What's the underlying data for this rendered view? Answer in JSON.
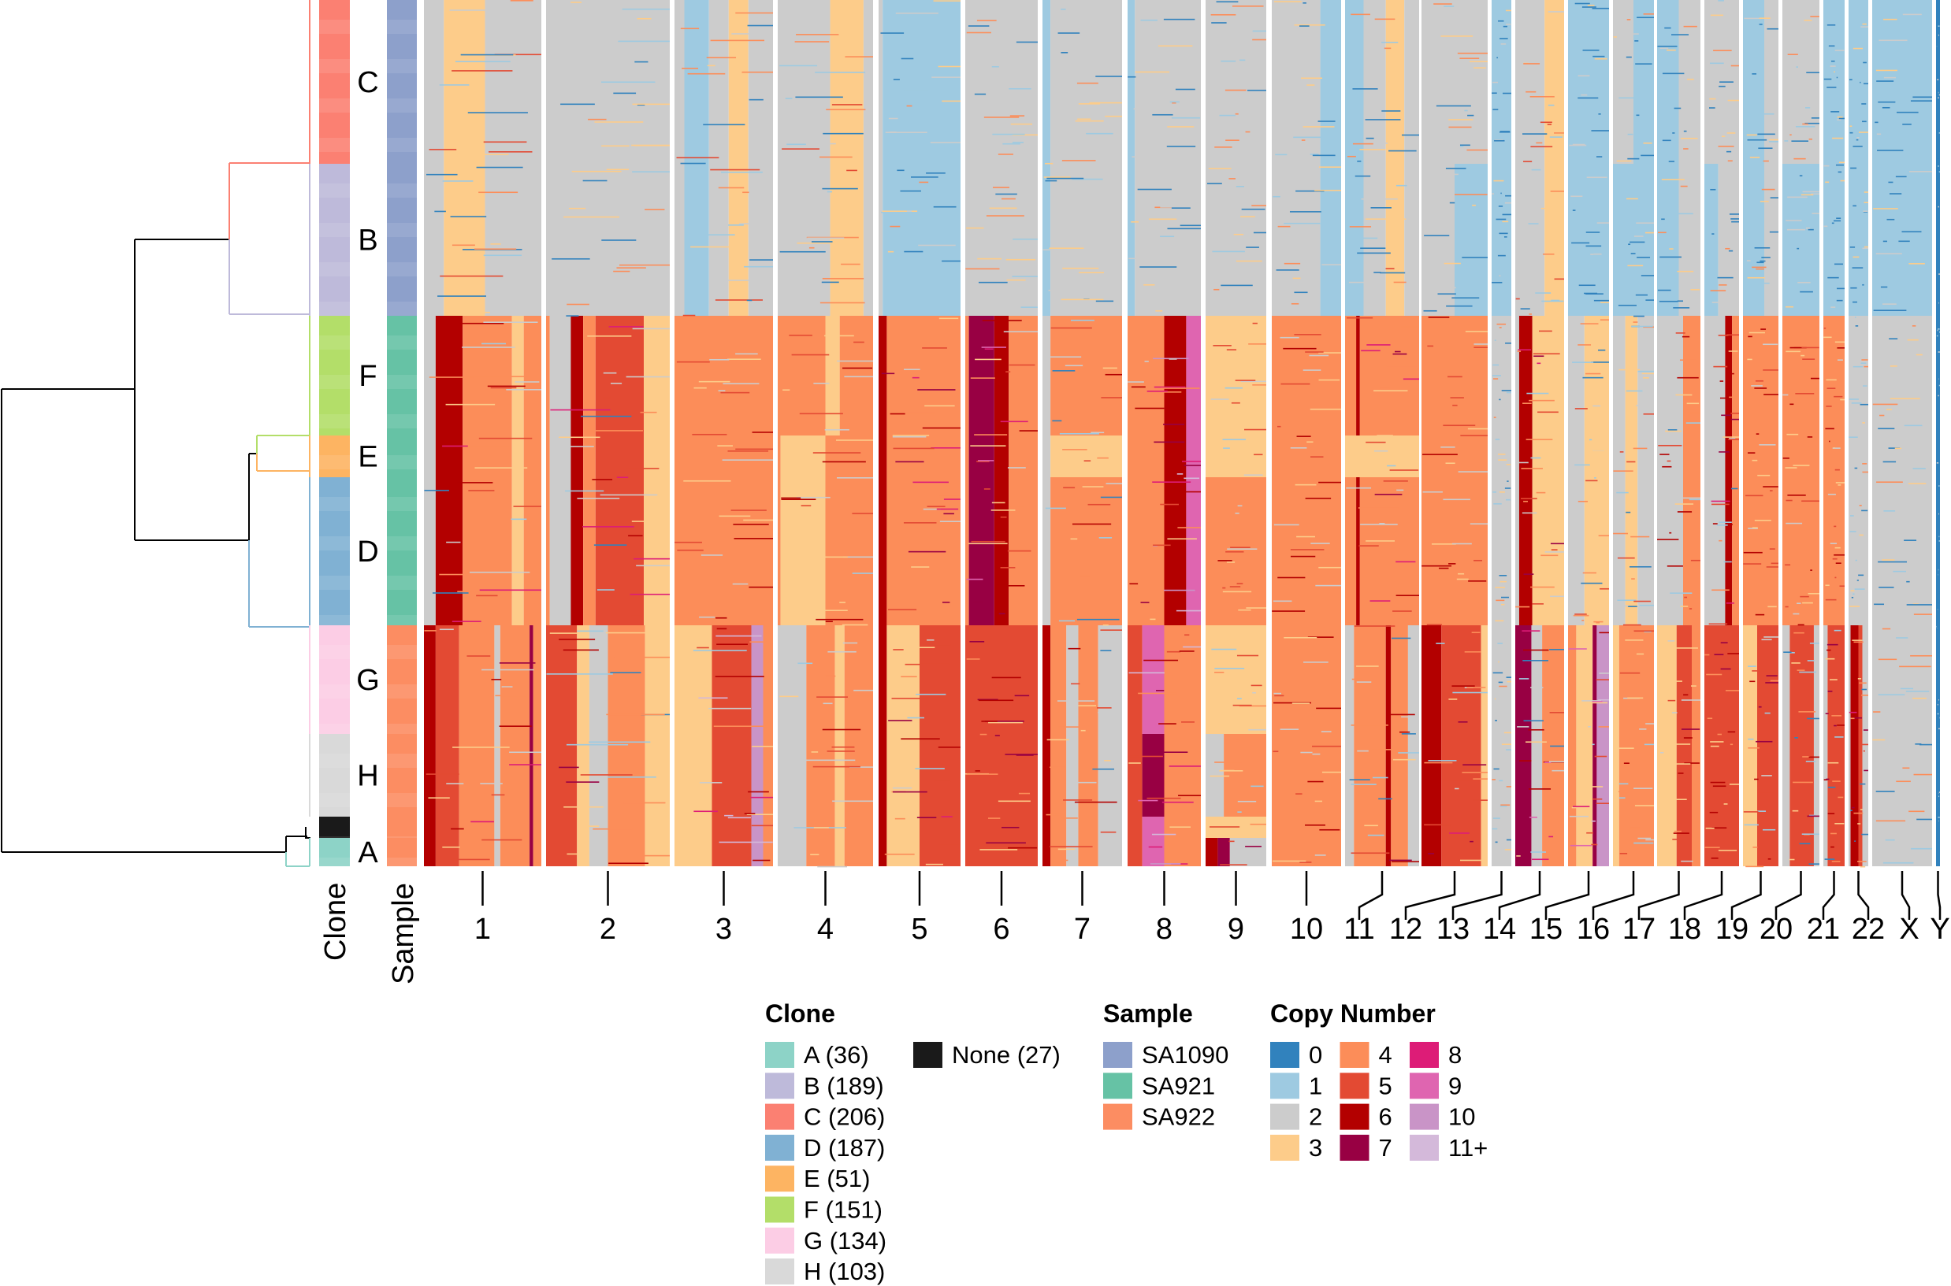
{
  "chart_data": {
    "type": "heatmap",
    "title": "",
    "row_annotations": {
      "clone_axis_label": "Clone",
      "sample_axis_label": "Sample"
    },
    "chromosomes": [
      "1",
      "2",
      "3",
      "4",
      "5",
      "6",
      "7",
      "8",
      "9",
      "10",
      "11",
      "12",
      "13",
      "14",
      "15",
      "16",
      "17",
      "18",
      "19",
      "20",
      "21",
      "22",
      "X",
      "Y"
    ],
    "clone_order": [
      "C",
      "B",
      "F",
      "E",
      "D",
      "G",
      "H",
      "None",
      "A"
    ],
    "clone_sample": {
      "C": "SA1090",
      "B": "SA1090",
      "F": "SA921",
      "E": "SA921",
      "D": "SA921",
      "G": "SA922",
      "H": "SA922",
      "None": "SA922",
      "A": "SA922"
    },
    "clone_colors": {
      "A": "#8dd3c7",
      "B": "#bebada",
      "C": "#fb8072",
      "D": "#80b1d3",
      "E": "#fdb462",
      "F": "#b3de69",
      "G": "#fccde5",
      "H": "#d9d9d9",
      "None": "#1a1a1a"
    },
    "sample_colors": {
      "SA1090": "#8da0cb",
      "SA921": "#66c2a5",
      "SA922": "#fc8d62"
    },
    "copy_number_colors": {
      "0": "#3182bd",
      "1": "#9ecae1",
      "2": "#cccccc",
      "3": "#fdcc8a",
      "4": "#fc8d59",
      "5": "#e34a33",
      "6": "#b30000",
      "7": "#980043",
      "8": "#dd1c77",
      "9": "#df65b0",
      "10": "#c994c7",
      "11+": "#d4b9da"
    },
    "profiles_description_units": "segments as [fraction along chromosome, copy number state]",
    "profiles": {
      "SA1090": {
        "1": [
          [
            0,
            2
          ],
          [
            0.17,
            3
          ],
          [
            0.52,
            2
          ]
        ],
        "2": [
          [
            0,
            2
          ]
        ],
        "3": [
          [
            0,
            2
          ],
          [
            0.1,
            1
          ],
          [
            0.35,
            2
          ],
          [
            0.55,
            3
          ],
          [
            0.75,
            2
          ]
        ],
        "4": [
          [
            0,
            2
          ],
          [
            0.55,
            3
          ],
          [
            0.9,
            2
          ]
        ],
        "5": [
          [
            0,
            2
          ],
          [
            0.05,
            1
          ]
        ],
        "6": [
          [
            0,
            2
          ]
        ],
        "7": [
          [
            0,
            1
          ],
          [
            0.1,
            2
          ]
        ],
        "8": [
          [
            0,
            1
          ],
          [
            0.1,
            2
          ]
        ],
        "9": [
          [
            0,
            2
          ]
        ],
        "10": [
          [
            0,
            2
          ],
          [
            0.7,
            1
          ]
        ],
        "11": [
          [
            0,
            1
          ],
          [
            0.25,
            2
          ],
          [
            0.55,
            3
          ],
          [
            0.8,
            2
          ]
        ],
        "12": [
          [
            0,
            2
          ]
        ],
        "13": [
          [
            0,
            1
          ]
        ],
        "14": [
          [
            0,
            2
          ],
          [
            0.6,
            3
          ]
        ],
        "15": [
          [
            0,
            1
          ]
        ],
        "16": [
          [
            0,
            2
          ],
          [
            0.5,
            1
          ]
        ],
        "17": [
          [
            0,
            1
          ],
          [
            0.5,
            2
          ]
        ],
        "18": [
          [
            0,
            2
          ]
        ],
        "19": [
          [
            0,
            1
          ],
          [
            0.6,
            2
          ]
        ],
        "20": [
          [
            0,
            2
          ]
        ],
        "21": [
          [
            0,
            1
          ]
        ],
        "22": [
          [
            0,
            1
          ]
        ],
        "X": [
          [
            0,
            1
          ]
        ],
        "Y": [
          [
            0,
            0
          ]
        ]
      },
      "SA921": {
        "1": [
          [
            0,
            2
          ],
          [
            0.1,
            6
          ],
          [
            0.33,
            4
          ],
          [
            0.75,
            3
          ],
          [
            0.85,
            4
          ]
        ],
        "2": [
          [
            0,
            4
          ],
          [
            0.03,
            2
          ],
          [
            0.2,
            6
          ],
          [
            0.3,
            4
          ],
          [
            0.4,
            5
          ],
          [
            0.79,
            3
          ]
        ],
        "3": [
          [
            0,
            4
          ]
        ],
        "4": [
          [
            0,
            4
          ],
          [
            0.03,
            3
          ],
          [
            0.5,
            4
          ]
        ],
        "5": [
          [
            0,
            6
          ],
          [
            0.1,
            4
          ]
        ],
        "6": [
          [
            0,
            4
          ],
          [
            0.05,
            7
          ],
          [
            0.4,
            6
          ],
          [
            0.6,
            4
          ]
        ],
        "7": [
          [
            0,
            2
          ],
          [
            0.1,
            4
          ]
        ],
        "8": [
          [
            0,
            4
          ],
          [
            0.5,
            6
          ],
          [
            0.8,
            9
          ]
        ],
        "9": [
          [
            0,
            4
          ]
        ],
        "10": [
          [
            0,
            4
          ]
        ],
        "11": [
          [
            0,
            4
          ],
          [
            0.15,
            6
          ],
          [
            0.2,
            4
          ]
        ],
        "12": [
          [
            0,
            4
          ]
        ],
        "13": [
          [
            0,
            2
          ]
        ],
        "14": [
          [
            0,
            2
          ],
          [
            0.08,
            6
          ],
          [
            0.35,
            3
          ]
        ],
        "15": [
          [
            0,
            2
          ],
          [
            0.4,
            3
          ]
        ],
        "16": [
          [
            0,
            2
          ],
          [
            0.3,
            3
          ],
          [
            0.6,
            2
          ]
        ],
        "17": [
          [
            0,
            2
          ],
          [
            0.6,
            4
          ]
        ],
        "18": [
          [
            0,
            2
          ],
          [
            0.6,
            6
          ],
          [
            0.8,
            4
          ]
        ],
        "19": [
          [
            0,
            4
          ]
        ],
        "20": [
          [
            0,
            4
          ]
        ],
        "21": [
          [
            0,
            4
          ]
        ],
        "22": [
          [
            0,
            2
          ]
        ],
        "X": [
          [
            0,
            2
          ]
        ],
        "Y": [
          [
            0,
            0
          ]
        ]
      },
      "SA922": {
        "1": [
          [
            0,
            6
          ],
          [
            0.1,
            5
          ],
          [
            0.3,
            4
          ],
          [
            0.6,
            2
          ],
          [
            0.65,
            4
          ],
          [
            0.9,
            7
          ],
          [
            0.93,
            4
          ]
        ],
        "2": [
          [
            0,
            5
          ],
          [
            0.25,
            3
          ],
          [
            0.35,
            2
          ],
          [
            0.5,
            4
          ],
          [
            0.8,
            3
          ]
        ],
        "3": [
          [
            0,
            3
          ],
          [
            0.38,
            5
          ],
          [
            0.78,
            10
          ],
          [
            0.9,
            4
          ]
        ],
        "4": [
          [
            0,
            2
          ],
          [
            0.3,
            4
          ],
          [
            0.6,
            3
          ],
          [
            0.7,
            4
          ]
        ],
        "5": [
          [
            0,
            6
          ],
          [
            0.1,
            3
          ],
          [
            0.5,
            5
          ]
        ],
        "6": [
          [
            0,
            5
          ]
        ],
        "7": [
          [
            0,
            6
          ],
          [
            0.1,
            4
          ],
          [
            0.3,
            2
          ],
          [
            0.45,
            4
          ],
          [
            0.7,
            2
          ]
        ],
        "8": [
          [
            0,
            5
          ],
          [
            0.2,
            9
          ],
          [
            0.5,
            4
          ]
        ],
        "9": [
          [
            0,
            3
          ]
        ],
        "10": [
          [
            0,
            4
          ]
        ],
        "11": [
          [
            0,
            2
          ],
          [
            0.12,
            4
          ],
          [
            0.55,
            6
          ],
          [
            0.62,
            4
          ],
          [
            0.85,
            2
          ]
        ],
        "12": [
          [
            0,
            6
          ],
          [
            0.3,
            5
          ],
          [
            0.9,
            3
          ]
        ],
        "13": [
          [
            0,
            2
          ]
        ],
        "14": [
          [
            0,
            7
          ],
          [
            0.33,
            2
          ],
          [
            0.55,
            4
          ]
        ],
        "15": [
          [
            0,
            4
          ],
          [
            0.2,
            3
          ],
          [
            0.6,
            7
          ],
          [
            0.7,
            10
          ]
        ],
        "16": [
          [
            0,
            3
          ],
          [
            0.15,
            4
          ]
        ],
        "17": [
          [
            0,
            3
          ],
          [
            0.45,
            5
          ],
          [
            0.8,
            4
          ]
        ],
        "18": [
          [
            0,
            5
          ]
        ],
        "19": [
          [
            0,
            3
          ],
          [
            0.4,
            5
          ]
        ],
        "20": [
          [
            0,
            2
          ],
          [
            0.2,
            5
          ],
          [
            0.85,
            2
          ]
        ],
        "21": [
          [
            0,
            2
          ],
          [
            0.2,
            5
          ]
        ],
        "22": [
          [
            0,
            2
          ],
          [
            0.1,
            6
          ],
          [
            0.5,
            5
          ],
          [
            0.7,
            2
          ]
        ],
        "X": [
          [
            0,
            2
          ]
        ],
        "Y": [
          [
            0,
            0
          ]
        ]
      }
    },
    "clone_overrides": {
      "B": {
        "12": [
          [
            0,
            2
          ],
          [
            0.5,
            1
          ]
        ],
        "16": [
          [
            0,
            1
          ]
        ],
        "18": [
          [
            0,
            1
          ],
          [
            0.4,
            2
          ]
        ],
        "20": [
          [
            0,
            1
          ]
        ]
      },
      "F": {
        "9": [
          [
            0,
            3
          ]
        ],
        "4": [
          [
            0,
            4
          ],
          [
            0.5,
            3
          ],
          [
            0.65,
            4
          ]
        ]
      },
      "E": {
        "9": [
          [
            0,
            3
          ]
        ],
        "7": [
          [
            0,
            2
          ],
          [
            0.1,
            3
          ]
        ],
        "11": [
          [
            0,
            3
          ]
        ]
      },
      "H": {
        "8": [
          [
            0,
            5
          ],
          [
            0.2,
            7
          ],
          [
            0.5,
            4
          ]
        ],
        "9": [
          [
            0,
            2
          ],
          [
            0.3,
            4
          ]
        ]
      },
      "A": {
        "9": [
          [
            0,
            6
          ],
          [
            0.2,
            7
          ],
          [
            0.4,
            2
          ]
        ]
      }
    },
    "row_labels": [
      "C",
      "B",
      "F",
      "E",
      "D",
      "G",
      "H",
      "A"
    ]
  },
  "legend": {
    "clone": {
      "title": "Clone",
      "items": [
        {
          "label": "A (36)",
          "color": "#8dd3c7"
        },
        {
          "label": "B (189)",
          "color": "#bebada"
        },
        {
          "label": "C (206)",
          "color": "#fb8072"
        },
        {
          "label": "D (187)",
          "color": "#80b1d3"
        },
        {
          "label": "E (51)",
          "color": "#fdb462"
        },
        {
          "label": "F (151)",
          "color": "#b3de69"
        },
        {
          "label": "G (134)",
          "color": "#fccde5"
        },
        {
          "label": "H (103)",
          "color": "#d9d9d9"
        },
        {
          "label": "None (27)",
          "color": "#1a1a1a"
        }
      ]
    },
    "sample": {
      "title": "Sample",
      "items": [
        {
          "label": "SA1090",
          "color": "#8da0cb"
        },
        {
          "label": "SA921",
          "color": "#66c2a5"
        },
        {
          "label": "SA922",
          "color": "#fc8d62"
        }
      ]
    },
    "copy_number": {
      "title": "Copy Number",
      "items": [
        {
          "label": "0",
          "color": "#3182bd"
        },
        {
          "label": "1",
          "color": "#9ecae1"
        },
        {
          "label": "2",
          "color": "#cccccc"
        },
        {
          "label": "3",
          "color": "#fdcc8a"
        },
        {
          "label": "4",
          "color": "#fc8d59"
        },
        {
          "label": "5",
          "color": "#e34a33"
        },
        {
          "label": "6",
          "color": "#b30000"
        },
        {
          "label": "7",
          "color": "#980043"
        },
        {
          "label": "8",
          "color": "#dd1c77"
        },
        {
          "label": "9",
          "color": "#df65b0"
        },
        {
          "label": "10",
          "color": "#c994c7"
        },
        {
          "label": "11+",
          "color": "#d4b9da"
        }
      ]
    }
  }
}
